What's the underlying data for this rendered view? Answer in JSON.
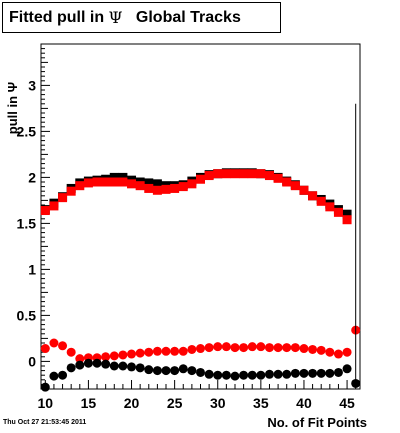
{
  "title": {
    "prefix": "Fitted pull in ",
    "greek": "Ψ",
    "suffix": "   Global Tracks"
  },
  "footer": {
    "timestamp": "Thu Oct 27 21:53:45 2011"
  },
  "chart_data": {
    "type": "scatter",
    "title": "Fitted pull in Ψ   Global Tracks",
    "xlabel": "No. of Fit Points",
    "ylabel": "pull in Ψ",
    "xlim": [
      9.5,
      46.5
    ],
    "ylim": [
      -0.3,
      3.45
    ],
    "x_ticks": [
      "10",
      "15",
      "20",
      "25",
      "30",
      "35",
      "40",
      "45"
    ],
    "y_ticks": [
      "0",
      "0.5",
      "1",
      "1.5",
      "2",
      "2.5",
      "3"
    ],
    "grid": false,
    "series": [
      {
        "color": "#000000",
        "marker": "square",
        "x": [
          10,
          11,
          12,
          13,
          14,
          15,
          16,
          17,
          18,
          19,
          20,
          21,
          22,
          23,
          24,
          25,
          26,
          27,
          28,
          29,
          30,
          31,
          32,
          33,
          34,
          35,
          36,
          37,
          38,
          39,
          40,
          41,
          42,
          43,
          44,
          45
        ],
        "values": [
          1.65,
          1.72,
          1.79,
          1.88,
          1.94,
          1.96,
          1.97,
          1.98,
          2.0,
          2.0,
          1.97,
          1.95,
          1.94,
          1.93,
          1.91,
          1.91,
          1.92,
          1.96,
          2.0,
          2.03,
          2.04,
          2.05,
          2.05,
          2.05,
          2.05,
          2.04,
          2.03,
          2.0,
          1.96,
          1.92,
          1.86,
          1.8,
          1.76,
          1.71,
          1.65,
          1.6
        ]
      },
      {
        "color": "#ff0000",
        "marker": "square",
        "x": [
          10,
          11,
          12,
          13,
          14,
          15,
          16,
          17,
          18,
          19,
          20,
          21,
          22,
          23,
          24,
          25,
          26,
          27,
          28,
          29,
          30,
          31,
          32,
          33,
          34,
          35,
          36,
          37,
          38,
          39,
          40,
          41,
          42,
          43,
          44,
          45
        ],
        "values": [
          1.64,
          1.69,
          1.78,
          1.85,
          1.91,
          1.94,
          1.95,
          1.95,
          1.95,
          1.95,
          1.93,
          1.91,
          1.88,
          1.86,
          1.87,
          1.88,
          1.9,
          1.93,
          1.98,
          2.02,
          2.04,
          2.04,
          2.04,
          2.04,
          2.04,
          2.04,
          2.02,
          1.99,
          1.95,
          1.91,
          1.86,
          1.8,
          1.74,
          1.68,
          1.62,
          1.54
        ]
      },
      {
        "color": "#ff0000",
        "marker": "circle",
        "x": [
          10,
          11,
          12,
          13,
          14,
          15,
          16,
          17,
          18,
          19,
          20,
          21,
          22,
          23,
          24,
          25,
          26,
          27,
          28,
          29,
          30,
          31,
          32,
          33,
          34,
          35,
          36,
          37,
          38,
          39,
          40,
          41,
          42,
          43,
          44,
          45,
          46
        ],
        "values": [
          0.14,
          0.2,
          0.17,
          0.1,
          0.03,
          0.04,
          0.04,
          0.05,
          0.06,
          0.07,
          0.08,
          0.09,
          0.1,
          0.11,
          0.11,
          0.11,
          0.11,
          0.13,
          0.14,
          0.15,
          0.16,
          0.16,
          0.15,
          0.15,
          0.16,
          0.16,
          0.15,
          0.15,
          0.15,
          0.15,
          0.14,
          0.13,
          0.12,
          0.1,
          0.08,
          0.1,
          0.34
        ]
      },
      {
        "color": "#000000",
        "marker": "circle",
        "x": [
          10,
          11,
          12,
          13,
          14,
          15,
          16,
          17,
          18,
          19,
          20,
          21,
          22,
          23,
          24,
          25,
          26,
          27,
          28,
          29,
          30,
          31,
          32,
          33,
          34,
          35,
          36,
          37,
          38,
          39,
          40,
          41,
          42,
          43,
          44,
          45,
          46
        ],
        "values": [
          -0.28,
          -0.16,
          -0.15,
          -0.07,
          -0.04,
          -0.02,
          -0.02,
          -0.03,
          -0.05,
          -0.05,
          -0.06,
          -0.07,
          -0.09,
          -0.1,
          -0.1,
          -0.1,
          -0.08,
          -0.1,
          -0.12,
          -0.14,
          -0.15,
          -0.15,
          -0.16,
          -0.15,
          -0.15,
          -0.15,
          -0.14,
          -0.14,
          -0.14,
          -0.13,
          -0.13,
          -0.13,
          -0.13,
          -0.13,
          -0.12,
          -0.08,
          -0.24
        ],
        "error_bar": {
          "x": 46,
          "low": -0.27,
          "high": 2.8
        }
      }
    ]
  }
}
